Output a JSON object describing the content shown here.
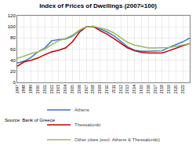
{
  "chart_data": {
    "type": "line",
    "title": "Index of Prices of Dwellings (2007=100)",
    "x": [
      1997,
      1998,
      1999,
      2000,
      2001,
      2002,
      2003,
      2004,
      2005,
      2006,
      2007,
      2008,
      2009,
      2010,
      2011,
      2012,
      2013,
      2014,
      2015,
      2016,
      2017,
      2018,
      2019,
      2020,
      2021,
      2022
    ],
    "series": [
      {
        "name": "Athens",
        "color": "#4472c4",
        "values": [
          35,
          38,
          45,
          55,
          62,
          75,
          77,
          78,
          83,
          93,
          100,
          100,
          96,
          91,
          84,
          74,
          64,
          58,
          56,
          56,
          56,
          57,
          63,
          68,
          73,
          80
        ]
      },
      {
        "name": "Thessaloniki",
        "color": "#c00000",
        "values": [
          29,
          37,
          40,
          44,
          50,
          55,
          58,
          62,
          73,
          90,
          100,
          101,
          93,
          87,
          79,
          70,
          62,
          57,
          54,
          53,
          53,
          53,
          57,
          62,
          66,
          70
        ]
      },
      {
        "name": "Other cities (excl. Athens & Thessaloniki)",
        "color": "#9bbb59",
        "values": [
          43,
          48,
          52,
          55,
          60,
          68,
          75,
          79,
          85,
          94,
          100,
          101,
          98,
          95,
          89,
          81,
          72,
          67,
          64,
          62,
          62,
          62,
          63,
          65,
          68,
          70
        ]
      }
    ],
    "xlim": [
      1997,
      2022
    ],
    "xticks": [
      1997,
      1998,
      1999,
      2000,
      2001,
      2002,
      2003,
      2004,
      2005,
      2006,
      2007,
      2008,
      2009,
      2010,
      2011,
      2012,
      2013,
      2014,
      2015,
      2016,
      2017,
      2018,
      2019,
      2020,
      2021
    ],
    "ylim": [
      0,
      120
    ],
    "yticks": [
      0,
      20,
      40,
      60,
      80,
      100,
      120
    ],
    "grid": true,
    "legend": "bottom",
    "annotations": [
      "Source: Bank of Greece"
    ]
  }
}
